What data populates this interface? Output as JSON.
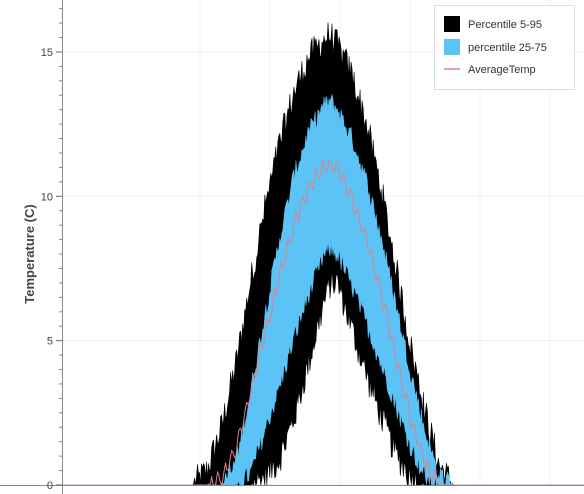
{
  "chart_data": {
    "type": "area",
    "xlabel": "",
    "ylabel": "Temperature (C)",
    "ylim": [
      0,
      16.8
    ],
    "yticks": [
      0,
      5,
      10,
      15
    ],
    "x": [
      0,
      20,
      40,
      45,
      50,
      55,
      60,
      65,
      70,
      75,
      80,
      85,
      90,
      92.5,
      95,
      100,
      105,
      110,
      115,
      120,
      125,
      130,
      135,
      140,
      145,
      150,
      160,
      180
    ],
    "series": [
      {
        "name": "Percentile 5-95",
        "kind": "band",
        "color": "#000000",
        "lower": [
          0,
          0,
          0,
          0,
          0,
          0,
          0,
          0,
          0.3,
          0.9,
          2.3,
          4.2,
          6.2,
          7.0,
          7.0,
          5.4,
          3.8,
          2.4,
          1.1,
          0.3,
          0,
          0,
          0,
          0,
          0,
          0,
          0,
          0
        ],
        "upper": [
          0,
          0,
          0,
          0,
          0.5,
          2.0,
          4.2,
          7.0,
          9.6,
          11.8,
          13.6,
          14.8,
          15.4,
          15.6,
          15.2,
          14.2,
          12.5,
          10.3,
          7.6,
          4.9,
          2.6,
          0.7,
          0,
          0,
          0,
          0,
          0,
          0
        ]
      },
      {
        "name": "percentile 25-75",
        "kind": "band",
        "color": "#5bc3f5",
        "lower": [
          0,
          0,
          0,
          0,
          0,
          0,
          0,
          0.4,
          1.9,
          3.4,
          5.1,
          6.6,
          7.9,
          8.2,
          8.0,
          6.9,
          5.6,
          4.2,
          2.8,
          1.4,
          0.3,
          0,
          0,
          0,
          0,
          0,
          0,
          0
        ],
        "upper": [
          0,
          0,
          0,
          0,
          0,
          0,
          0.7,
          3.2,
          5.9,
          8.5,
          10.7,
          12.2,
          13.1,
          13.3,
          13.0,
          12.0,
          10.5,
          8.6,
          6.3,
          4.0,
          1.9,
          0.3,
          0,
          0,
          0,
          0,
          0,
          0
        ]
      },
      {
        "name": "AverageTemp",
        "kind": "line",
        "color": "#e0808c",
        "values": [
          0,
          0,
          0,
          0,
          0,
          0.2,
          1.3,
          3.2,
          5.2,
          7.2,
          9.0,
          10.3,
          11.0,
          11.1,
          11.0,
          9.9,
          8.5,
          6.7,
          4.5,
          2.4,
          0.8,
          0,
          0,
          0,
          0,
          0,
          0,
          0
        ]
      }
    ],
    "grid": true,
    "legend": "top-right"
  },
  "legend": {
    "items": [
      {
        "label": "Percentile 5-95",
        "color": "#000000",
        "swatch": "box"
      },
      {
        "label": "percentile 25-75",
        "color": "#5bc3f5",
        "swatch": "box"
      },
      {
        "label": "AverageTemp",
        "color": "#e0808c",
        "swatch": "line"
      }
    ]
  }
}
